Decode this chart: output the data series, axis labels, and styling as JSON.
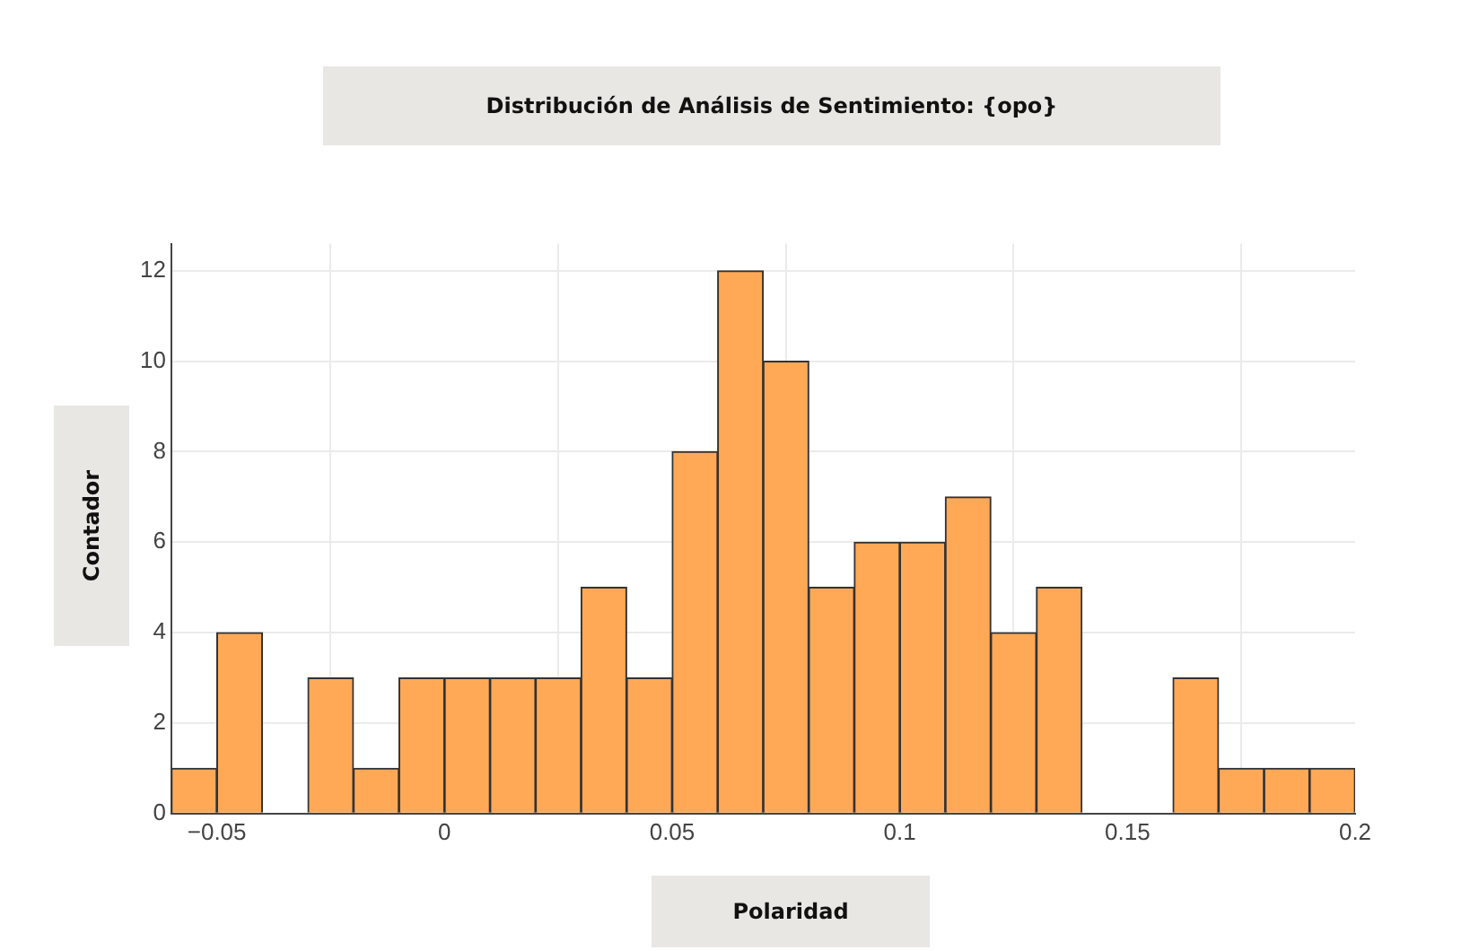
{
  "chart_data": {
    "type": "histogram",
    "title": "Distribución de Análisis de Sentimiento: {opo}",
    "xlabel": "Polaridad",
    "ylabel": "Contador",
    "bins": [
      -0.06,
      -0.05,
      -0.04,
      -0.03,
      -0.02,
      -0.01,
      0,
      0.01,
      0.02,
      0.03,
      0.04,
      0.05,
      0.06,
      0.07,
      0.08,
      0.09,
      0.1,
      0.11,
      0.12,
      0.13,
      0.14,
      0.15,
      0.16,
      0.17,
      0.18,
      0.19,
      0.2
    ],
    "values": [
      1,
      4,
      0,
      3,
      1,
      3,
      3,
      3,
      3,
      5,
      3,
      8,
      12,
      10,
      5,
      6,
      6,
      7,
      4,
      5,
      0,
      0,
      3,
      1,
      1,
      1
    ],
    "color": "#ffa957",
    "xlim": [
      -0.06,
      0.2
    ],
    "xticks": [
      {
        "value": -0.05,
        "label": "−0.05"
      },
      0,
      0.05,
      0.1,
      0.15,
      0.2
    ],
    "ylim": [
      0,
      12.6
    ],
    "yticks": [
      0,
      2,
      4,
      6,
      8,
      10,
      12
    ],
    "grid": true,
    "legend": false
  }
}
